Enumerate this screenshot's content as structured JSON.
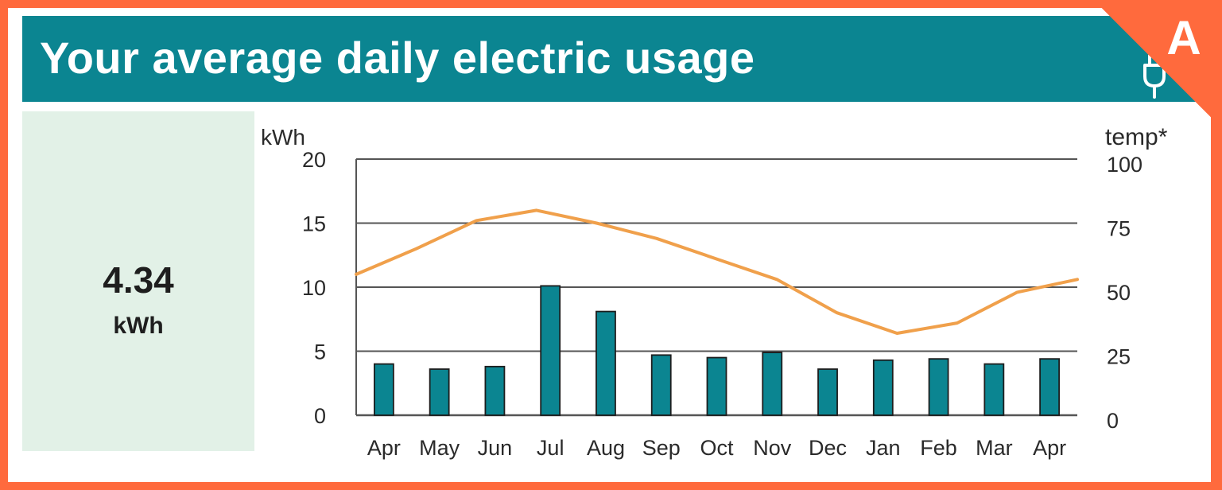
{
  "header": {
    "title": "Your average daily electric usage",
    "icon": "plug-icon",
    "background": "#0b8591"
  },
  "summary": {
    "value": "4.34",
    "unit": "kWh",
    "background": "#e2f1e7"
  },
  "badge": {
    "letter": "A",
    "color": "#ff6a3d"
  },
  "chart_data": {
    "type": "bar",
    "categories": [
      "Apr",
      "May",
      "Jun",
      "Jul",
      "Aug",
      "Sep",
      "Oct",
      "Nov",
      "Dec",
      "Jan",
      "Feb",
      "Mar",
      "Apr"
    ],
    "series": [
      {
        "type": "bar",
        "axis": "left",
        "color": "#0b8591",
        "values": [
          4.0,
          3.6,
          3.8,
          10.1,
          8.1,
          4.7,
          4.5,
          4.9,
          3.6,
          4.3,
          4.4,
          4.0,
          4.4
        ]
      },
      {
        "type": "line",
        "axis": "right",
        "color": "#f0a04b",
        "values": [
          55,
          65,
          76,
          80,
          75,
          69,
          61,
          53,
          40,
          32,
          36,
          48,
          53
        ],
        "x_start": 0,
        "x_end": 13
      }
    ],
    "ylabel_left": "kWh",
    "ylabel_right": "temp*",
    "ylim_left": [
      0,
      20
    ],
    "ylim_right": [
      0,
      100
    ],
    "yticks_left": [
      "0",
      "5",
      "10",
      "15",
      "20"
    ],
    "yticks_right": [
      "0",
      "25",
      "50",
      "75",
      "100"
    ],
    "grid": true
  }
}
